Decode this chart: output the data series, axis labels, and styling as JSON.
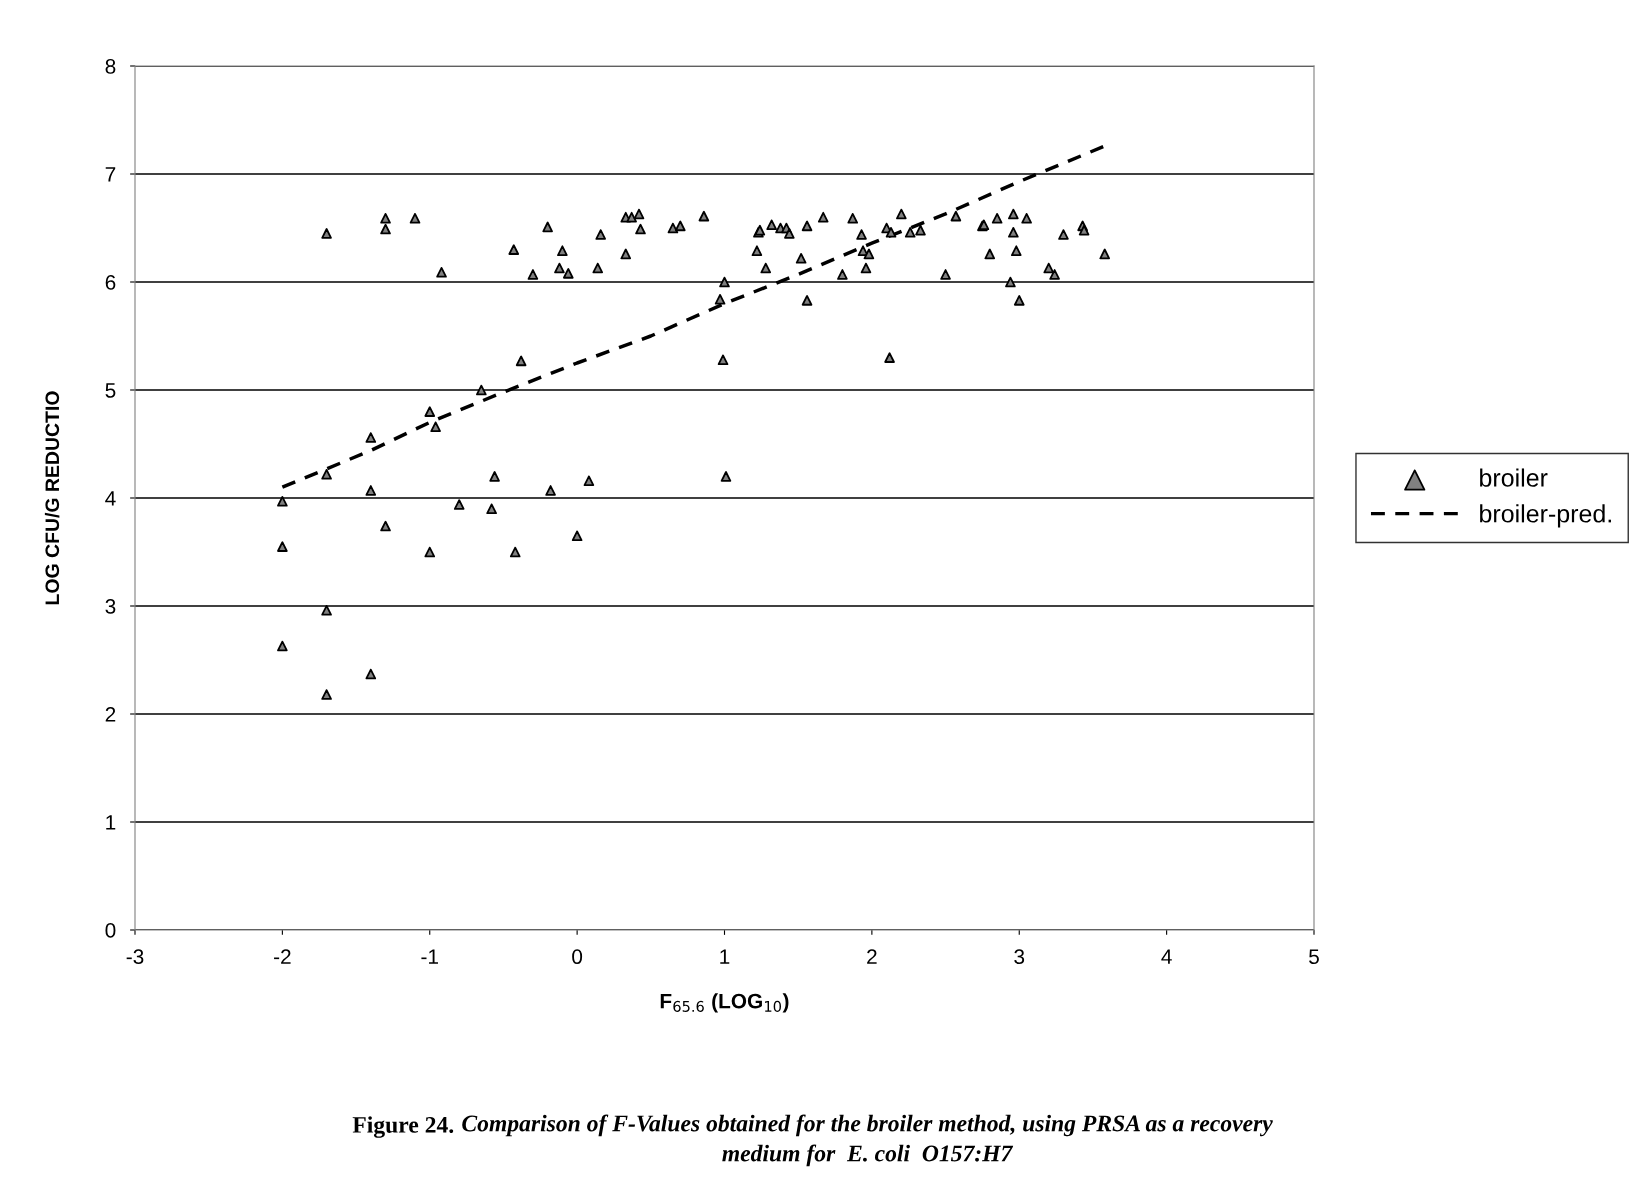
{
  "chart_data": {
    "type": "scatter",
    "xlabel": "F$_{65.6}$ (LOG$_{10}$)",
    "ylabel": "LOG CFU/G REDUCTIO",
    "annotations": [
      "Figure 24.",
      "Comparison of F-Values obtained for the broiler method, using PRSA as a recovery\nmedium for  E. coli  O157:H7"
    ],
    "xlim": [
      -3,
      5
    ],
    "xticks": [
      -3,
      -2,
      -1,
      0,
      1,
      2,
      3,
      4,
      5
    ],
    "ylim": [
      0,
      8
    ],
    "yticks": [
      0,
      1,
      2,
      3,
      4,
      5,
      6,
      7,
      8
    ],
    "grid": "y",
    "legend": "right",
    "series": [
      {
        "name": "broiler",
        "marker": "triangle",
        "color": "#808080",
        "x": [
          -2,
          -2,
          -2,
          -1.7,
          -1.7,
          -1.7,
          -1.7,
          -1.4,
          -1.4,
          -1.4,
          -1.3,
          -1.3,
          -1.3,
          -1.1,
          -1.0,
          -1.0,
          -0.96,
          -0.92,
          -0.8,
          -0.65,
          -0.58,
          -0.56,
          -0.43,
          -0.42,
          -0.38,
          -0.3,
          -0.2,
          -0.18,
          -0.1,
          -0.12,
          -0.06,
          0,
          0.08,
          0.14,
          0.16,
          0.33,
          0.33,
          0.37,
          0.42,
          0.43,
          0.65,
          0.7,
          0.86,
          0.97,
          0.99,
          1.0,
          1.01,
          1.22,
          1.23,
          1.24,
          1.28,
          1.32,
          1.38,
          1.42,
          1.44,
          1.52,
          1.56,
          1.56,
          1.67,
          1.8,
          1.87,
          1.93,
          1.94,
          1.96,
          1.98,
          2.1,
          2.12,
          2.13,
          2.2,
          2.26,
          2.33,
          2.5,
          2.57,
          2.75,
          2.76,
          2.8,
          2.85,
          2.94,
          2.96,
          2.96,
          2.98,
          3.0,
          3.05,
          3.2,
          3.24,
          3.3,
          3.43,
          3.44,
          3.58
        ],
        "values": [
          3.97,
          3.55,
          2.63,
          6.45,
          4.22,
          2.96,
          2.18,
          4.56,
          4.07,
          2.37,
          6.59,
          6.49,
          3.74,
          6.59,
          4.8,
          3.5,
          4.66,
          6.09,
          3.94,
          5.0,
          3.9,
          4.2,
          6.3,
          3.5,
          5.27,
          6.07,
          6.51,
          4.07,
          6.29,
          6.13,
          6.08,
          3.65,
          4.16,
          6.13,
          6.44,
          6.6,
          6.26,
          6.6,
          6.63,
          6.49,
          6.5,
          6.52,
          6.61,
          5.84,
          5.28,
          6.0,
          4.2,
          6.29,
          6.46,
          6.48,
          6.13,
          6.53,
          6.5,
          6.5,
          6.45,
          6.22,
          5.83,
          6.52,
          6.6,
          6.07,
          6.59,
          6.44,
          6.29,
          6.13,
          6.26,
          6.5,
          5.3,
          6.46,
          6.63,
          6.46,
          6.48,
          6.07,
          6.61,
          6.52,
          6.53,
          6.26,
          6.59,
          6.0,
          6.46,
          6.63,
          6.29,
          5.83,
          6.59,
          6.13,
          6.07,
          6.44,
          6.52,
          6.48,
          6.26
        ]
      },
      {
        "name": "broiler-pred.",
        "type": "line",
        "line_style": "dashed",
        "color": "#000000",
        "x": [
          -2,
          -1.7,
          -1.4,
          -1,
          -0.5,
          0,
          0.5,
          1,
          1.5,
          2,
          2.5,
          3,
          3.3,
          3.6
        ],
        "values": [
          4.1,
          4.27,
          4.44,
          4.7,
          4.98,
          5.25,
          5.5,
          5.8,
          6.07,
          6.36,
          6.63,
          6.93,
          7.1,
          7.27
        ]
      }
    ]
  }
}
